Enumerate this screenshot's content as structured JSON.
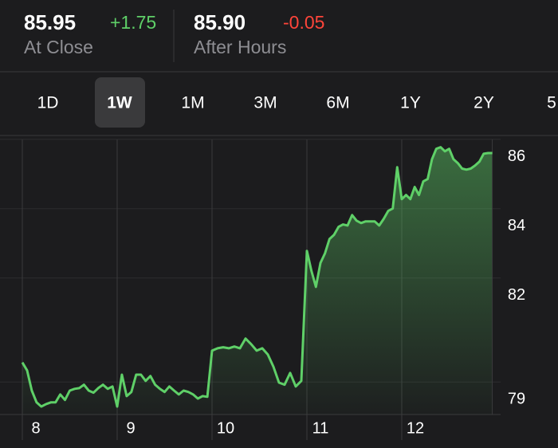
{
  "header": {
    "close_price": "85.95",
    "close_change": "+1.75",
    "close_label": "At Close",
    "after_price": "85.90",
    "after_change": "-0.05",
    "after_label": "After Hours"
  },
  "tabs": {
    "items": [
      "1D",
      "1W",
      "1M",
      "3M",
      "6M",
      "1Y",
      "2Y",
      "5"
    ],
    "selected": "1W"
  },
  "chart_data": {
    "type": "line",
    "color": "#5fd068",
    "grid": true,
    "ylim": [
      78.57,
      86.5
    ],
    "yticks": [
      79,
      82,
      84,
      86
    ],
    "days": [
      {
        "label": "8",
        "values": [
          80.07,
          79.84,
          79.26,
          78.92,
          78.8,
          78.87,
          78.92,
          78.92,
          79.15,
          78.99,
          79.26,
          79.31,
          79.33,
          79.43,
          79.26,
          79.2,
          79.33,
          79.43,
          79.31,
          79.38
        ]
      },
      {
        "label": "9",
        "values": [
          78.8,
          79.72,
          79.1,
          79.22,
          79.72,
          79.72,
          79.54,
          79.68,
          79.43,
          79.31,
          79.22,
          79.38,
          79.26,
          79.15,
          79.26,
          79.22,
          79.15,
          79.03,
          79.1,
          79.08
        ]
      },
      {
        "label": "10",
        "values": [
          80.41,
          80.48,
          80.51,
          80.48,
          80.53,
          80.48,
          80.76,
          80.6,
          80.41,
          80.48,
          80.3,
          79.95,
          79.49,
          79.43,
          79.77,
          79.38,
          79.54
        ]
      },
      {
        "label": "11",
        "values": [
          83.29,
          82.71,
          82.25,
          82.94,
          83.22,
          83.63,
          83.75,
          83.98,
          84.05,
          84.02,
          84.32,
          84.16,
          84.09,
          84.14,
          84.14,
          84.14,
          84.02,
          84.21,
          84.44,
          84.51,
          85.7
        ]
      },
      {
        "label": "12",
        "values": [
          84.78,
          84.9,
          84.78,
          85.13,
          84.9,
          85.29,
          85.36,
          85.93,
          86.23,
          86.28,
          86.16,
          86.23,
          85.93,
          85.82,
          85.66,
          85.63,
          85.66,
          85.75,
          85.86,
          86.09,
          86.11,
          86.11
        ]
      }
    ]
  }
}
